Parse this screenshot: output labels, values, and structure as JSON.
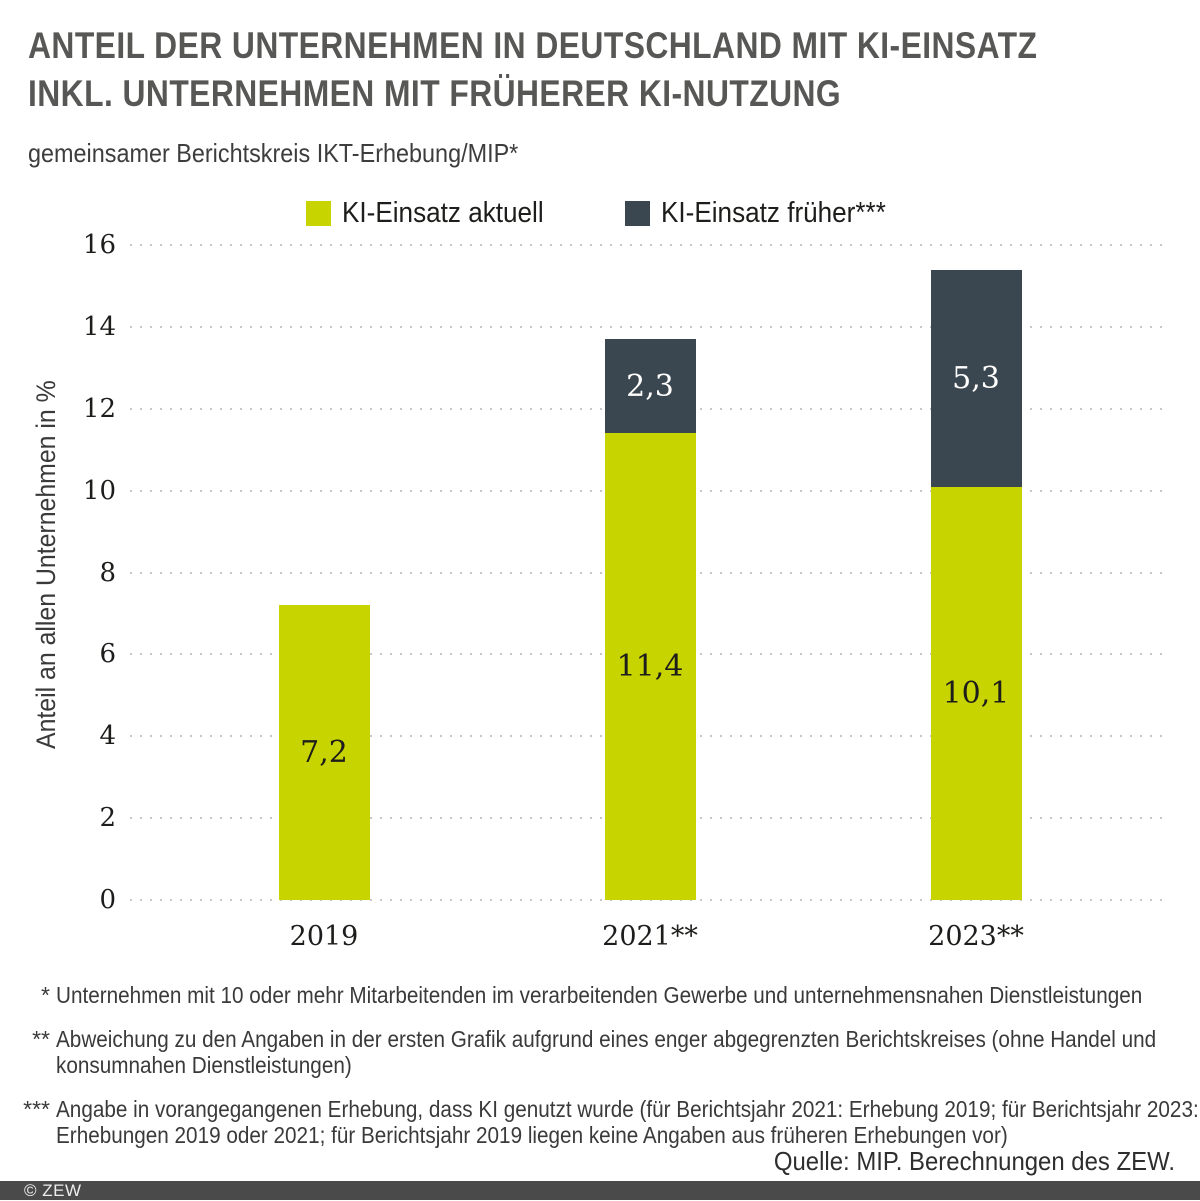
{
  "title": {
    "lines": [
      "ANTEIL DER UNTERNEHMEN IN DEUTSCHLAND MIT KI-EINSATZ",
      "INKL. UNTERNEHMEN MIT FRÜHERER KI-NUTZUNG"
    ]
  },
  "subtitle": "gemeinsamer Berichtskreis IKT-Erhebung/MIP*",
  "colors": {
    "bar_current": "#c8d400",
    "bar_former": "#3b4750",
    "grid_dots": "#c7c7c7",
    "footer_bar": "#4a4a4a"
  },
  "chart_data": {
    "type": "bar",
    "stacked": true,
    "title": "Anteil der Unternehmen in Deutschland mit KI-Einsatz inkl. Unternehmen mit früherer KI-Nutzung",
    "categories": [
      "2019",
      "2021**",
      "2023**"
    ],
    "series": [
      {
        "name": "KI-Einsatz aktuell",
        "color": "#c8d400",
        "label_color": "#1d1d1b",
        "values": [
          7.2,
          11.4,
          10.1
        ],
        "value_labels": [
          "7,2",
          "11,4",
          "10,1"
        ]
      },
      {
        "name": "KI-Einsatz früher***",
        "color": "#3b4750",
        "label_color": "#ffffff",
        "values": [
          null,
          2.3,
          5.3
        ],
        "value_labels": [
          "",
          "2,3",
          "5,3"
        ]
      }
    ],
    "totals": [
      7.2,
      13.7,
      15.4
    ],
    "xlabel": "",
    "ylabel": "Anteil an allen Unternehmen in %",
    "ylim": [
      0,
      16
    ],
    "yticks": [
      0,
      2,
      4,
      6,
      8,
      10,
      12,
      14,
      16
    ],
    "grid": "horizontal-dotted",
    "legend_position": "top"
  },
  "footnotes": [
    {
      "marker": "*",
      "lines": [
        "Unternehmen mit 10 oder mehr Mitarbeitenden im verarbeitenden Gewerbe und unternehmensnahen Dienstleistungen"
      ]
    },
    {
      "marker": "**",
      "lines": [
        "Abweichung zu den Angaben in der ersten Grafik aufgrund eines enger abgegrenzten Berichtskreises (ohne Handel und",
        "konsumnahen Dienstleistungen)"
      ]
    },
    {
      "marker": "***",
      "lines": [
        "Angabe in vorangegangenen Erhebung, dass KI genutzt wurde (für Berichtsjahr 2021: Erhebung 2019; für Berichtsjahr 2023:",
        "Erhebungen 2019 oder 2021; für Berichtsjahr 2019 liegen keine Angaben aus früheren Erhebungen vor)"
      ]
    }
  ],
  "source": "Quelle: MIP. Berechnungen des ZEW.",
  "footer": {
    "copyright": "© ZEW"
  }
}
